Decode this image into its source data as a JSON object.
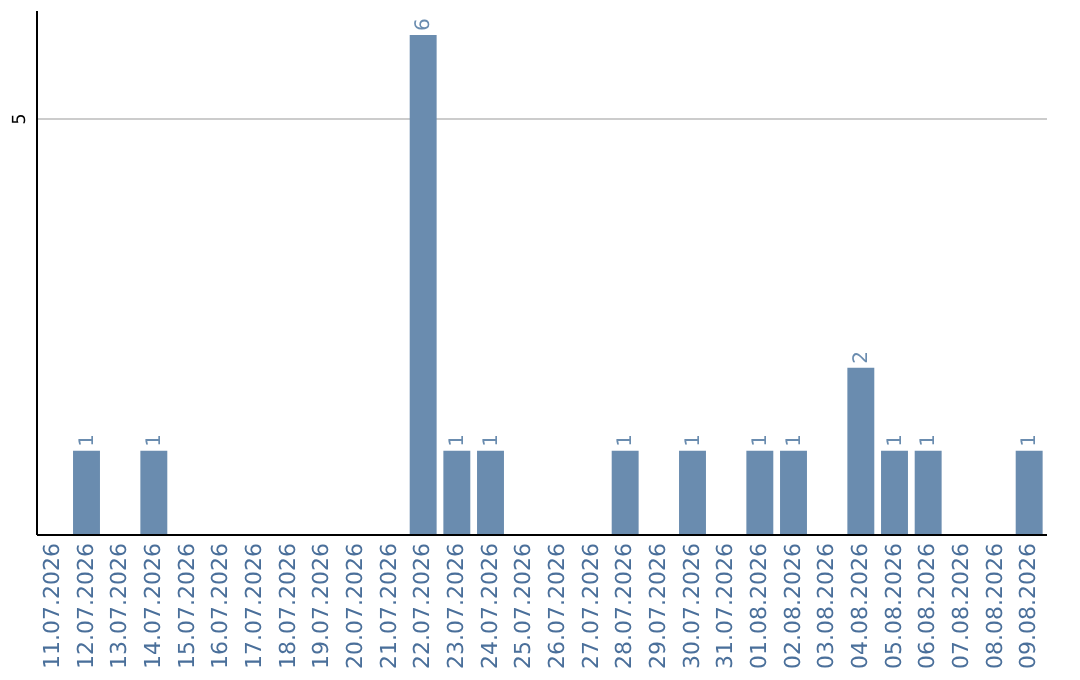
{
  "chart_data": {
    "type": "bar",
    "categories": [
      "11.07.2026",
      "12.07.2026",
      "13.07.2026",
      "14.07.2026",
      "15.07.2026",
      "16.07.2026",
      "17.07.2026",
      "18.07.2026",
      "19.07.2026",
      "20.07.2026",
      "21.07.2026",
      "22.07.2026",
      "23.07.2026",
      "24.07.2026",
      "25.07.2026",
      "26.07.2026",
      "27.07.2026",
      "28.07.2026",
      "29.07.2026",
      "30.07.2026",
      "31.07.2026",
      "01.08.2026",
      "02.08.2026",
      "03.08.2026",
      "04.08.2026",
      "05.08.2026",
      "06.08.2026",
      "07.08.2026",
      "08.08.2026",
      "09.08.2026"
    ],
    "values": [
      0,
      1,
      0,
      1,
      0,
      0,
      0,
      0,
      0,
      0,
      0,
      6,
      1,
      1,
      0,
      0,
      0,
      1,
      0,
      1,
      0,
      1,
      1,
      0,
      2,
      1,
      1,
      0,
      0,
      1
    ],
    "value_labels": [
      null,
      "1",
      null,
      "1",
      null,
      null,
      null,
      null,
      null,
      null,
      null,
      "6",
      "1",
      "1",
      null,
      null,
      null,
      "1",
      null,
      "1",
      null,
      "1",
      "1",
      null,
      "2",
      "1",
      "1",
      null,
      null,
      "1"
    ],
    "color": "#6a8caf",
    "ylim": [
      0,
      6.3
    ],
    "yticks": [
      5
    ],
    "grid": "y"
  }
}
